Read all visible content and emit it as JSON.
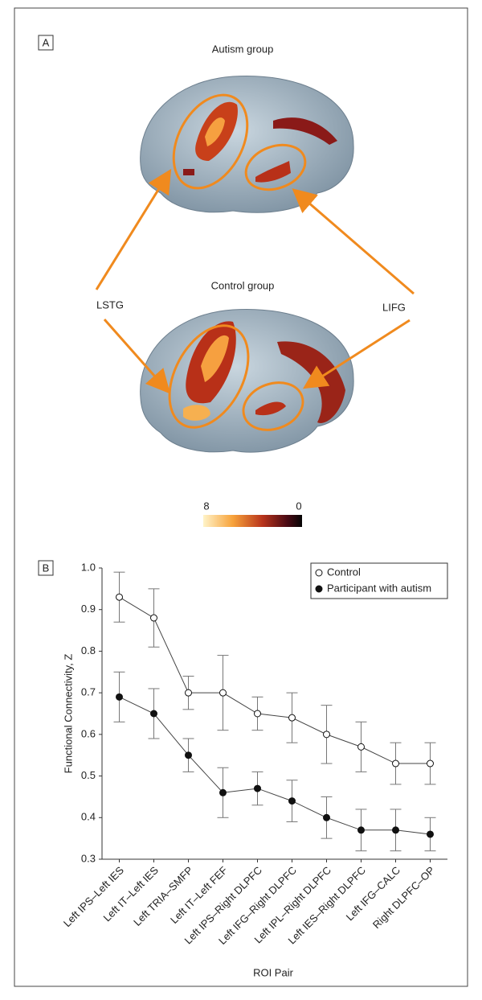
{
  "panel_a": {
    "label": "A",
    "titles": [
      "Autism group",
      "Control group"
    ],
    "region_labels": [
      "LSTG",
      "LIFG"
    ],
    "colorbar_ticks": [
      8,
      0
    ]
  },
  "chart_data": {
    "type": "line",
    "panel_label": "B",
    "categories": [
      "Left IPS–Left IES",
      "Left IT–Left IES",
      "Left TRIA–SMFP",
      "Left IT–Left FEF",
      "Left IPS–Right DLPFC",
      "Left IFG–Right DLPFC",
      "Left IPL–Right DLPFC",
      "Left IES–Right DLPFC",
      "Left IFG–CALC",
      "Right DLPFC–OP"
    ],
    "series": [
      {
        "name": "Control",
        "color": "#ffffff",
        "values": [
          0.93,
          0.88,
          0.7,
          0.7,
          0.65,
          0.64,
          0.6,
          0.57,
          0.53,
          0.53
        ],
        "errors": [
          0.06,
          0.07,
          0.04,
          0.09,
          0.04,
          0.06,
          0.07,
          0.06,
          0.05,
          0.05
        ]
      },
      {
        "name": "Participant with autism",
        "color": "#111111",
        "values": [
          0.69,
          0.65,
          0.55,
          0.46,
          0.47,
          0.44,
          0.4,
          0.37,
          0.37,
          0.36
        ],
        "errors": [
          0.06,
          0.06,
          0.04,
          0.06,
          0.04,
          0.05,
          0.05,
          0.05,
          0.05,
          0.04
        ]
      }
    ],
    "ylabel": "Functional Connectivity, Z",
    "xlabel": "ROI Pair",
    "ylim": [
      0.3,
      1.0
    ],
    "yticks": [
      0.3,
      0.4,
      0.5,
      0.6,
      0.7,
      0.8,
      0.9,
      {
        "value": 1.0,
        "label": "1.0"
      }
    ],
    "legend": "top-right"
  }
}
